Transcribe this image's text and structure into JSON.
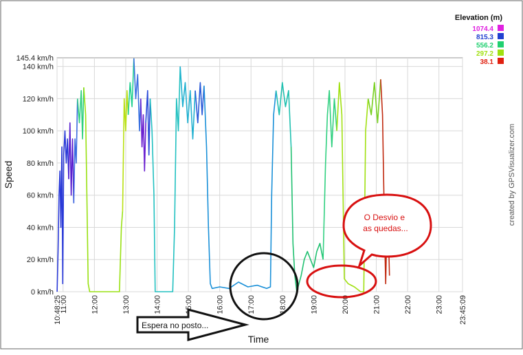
{
  "chart_data": {
    "type": "line",
    "title": "",
    "xlabel": "Time",
    "ylabel": "Speed",
    "ylim": [
      0,
      145.4
    ],
    "y_max_label": "145.4 km/h",
    "y_ticks": [
      "0 km/h",
      "20 km/h",
      "40 km/h",
      "60 km/h",
      "80 km/h",
      "100 km/h",
      "120 km/h",
      "140 km/h"
    ],
    "y_tick_values": [
      0,
      20,
      40,
      60,
      80,
      100,
      120,
      140
    ],
    "x_start": "10:48:25",
    "x_end": "23:45:09",
    "x_ticks": [
      "10:48:25",
      "11:00",
      "12:00",
      "13:00",
      "14:00",
      "15:00",
      "16:00",
      "17:00",
      "18:00",
      "19:00",
      "20:00",
      "21:00",
      "22:00",
      "23:00",
      "23:45:09"
    ],
    "x_tick_values": [
      10.807,
      11,
      12,
      13,
      14,
      15,
      16,
      17,
      18,
      19,
      20,
      21,
      22,
      23,
      23.753
    ],
    "grid": true,
    "color_legend": {
      "title": "Elevation (m)",
      "entries": [
        {
          "label": "1074.4",
          "color": "#e020e0"
        },
        {
          "label": "815.3",
          "color": "#2040d0"
        },
        {
          "label": "556.2",
          "color": "#20d070"
        },
        {
          "label": "297.2",
          "color": "#a0e010"
        },
        {
          "label": "38.1",
          "color": "#e02010"
        }
      ]
    },
    "credit": "created by GPSVisualizer.com",
    "series": [
      {
        "color": "#2a3ad8",
        "points": [
          [
            10.81,
            0
          ],
          [
            10.84,
            25
          ],
          [
            10.87,
            60
          ],
          [
            10.9,
            75
          ],
          [
            10.93,
            40
          ],
          [
            10.96,
            90
          ],
          [
            10.99,
            5
          ],
          [
            11.02,
            85
          ],
          [
            11.06,
            100
          ],
          [
            11.1,
            80
          ],
          [
            11.14,
            95
          ],
          [
            11.18,
            70
          ]
        ]
      },
      {
        "color": "#5a20d0",
        "points": [
          [
            11.18,
            70
          ],
          [
            11.22,
            105
          ],
          [
            11.26,
            60
          ],
          [
            11.3,
            95
          ],
          [
            11.34,
            55
          ]
        ]
      },
      {
        "color": "#3a6ae0",
        "points": [
          [
            11.34,
            55
          ],
          [
            11.38,
            95
          ],
          [
            11.42,
            80
          ],
          [
            11.46,
            120
          ]
        ]
      },
      {
        "color": "#30d080",
        "points": [
          [
            11.46,
            120
          ],
          [
            11.52,
            105
          ],
          [
            11.58,
            125
          ],
          [
            11.62,
            95
          ],
          [
            11.66,
            127
          ]
        ]
      },
      {
        "color": "#98e010",
        "points": [
          [
            11.66,
            127
          ],
          [
            11.72,
            110
          ],
          [
            11.76,
            60
          ],
          [
            11.8,
            5
          ],
          [
            11.85,
            0
          ],
          [
            12.2,
            0
          ],
          [
            12.6,
            0
          ],
          [
            12.8,
            0
          ],
          [
            12.86,
            40
          ],
          [
            12.9,
            50
          ]
        ]
      },
      {
        "color": "#b8e010",
        "points": [
          [
            12.9,
            50
          ],
          [
            12.95,
            120
          ],
          [
            13.0,
            100
          ],
          [
            13.04,
            125
          ],
          [
            13.08,
            110
          ]
        ]
      },
      {
        "color": "#20d090",
        "points": [
          [
            13.08,
            110
          ],
          [
            13.14,
            130
          ],
          [
            13.2,
            115
          ],
          [
            13.26,
            145
          ]
        ]
      },
      {
        "color": "#3a70e0",
        "points": [
          [
            13.26,
            145
          ],
          [
            13.32,
            120
          ],
          [
            13.38,
            135
          ],
          [
            13.44,
            100
          ],
          [
            13.48,
            120
          ]
        ]
      },
      {
        "color": "#6a20d0",
        "points": [
          [
            13.48,
            120
          ],
          [
            13.52,
            90
          ],
          [
            13.56,
            110
          ],
          [
            13.6,
            75
          ],
          [
            13.64,
            105
          ]
        ]
      },
      {
        "color": "#2a4ad8",
        "points": [
          [
            13.64,
            105
          ],
          [
            13.7,
            125
          ],
          [
            13.74,
            85
          ],
          [
            13.78,
            120
          ]
        ]
      },
      {
        "color": "#20c0c0",
        "points": [
          [
            13.78,
            120
          ],
          [
            13.84,
            100
          ],
          [
            13.9,
            60
          ],
          [
            13.94,
            0
          ],
          [
            14.0,
            0
          ],
          [
            14.4,
            0
          ],
          [
            14.5,
            0
          ],
          [
            14.56,
            40
          ],
          [
            14.62,
            120
          ],
          [
            14.68,
            100
          ],
          [
            14.74,
            140
          ]
        ]
      },
      {
        "color": "#20b0d0",
        "points": [
          [
            14.74,
            140
          ],
          [
            14.82,
            115
          ],
          [
            14.9,
            130
          ],
          [
            14.98,
            105
          ],
          [
            15.06,
            125
          ],
          [
            15.14,
            95
          ],
          [
            15.22,
            125
          ]
        ]
      },
      {
        "color": "#2a5ad8",
        "points": [
          [
            15.22,
            125
          ],
          [
            15.3,
            105
          ],
          [
            15.38,
            130
          ],
          [
            15.44,
            110
          ],
          [
            15.5,
            128
          ]
        ]
      },
      {
        "color": "#1a90d8",
        "points": [
          [
            15.5,
            128
          ],
          [
            15.58,
            90
          ],
          [
            15.64,
            40
          ],
          [
            15.7,
            5
          ],
          [
            15.76,
            2
          ],
          [
            16.0,
            3
          ],
          [
            16.3,
            2
          ],
          [
            16.6,
            6
          ],
          [
            16.9,
            3
          ],
          [
            17.2,
            4
          ],
          [
            17.5,
            2
          ],
          [
            17.62,
            3
          ],
          [
            17.66,
            60
          ],
          [
            17.72,
            110
          ],
          [
            17.8,
            125
          ]
        ]
      },
      {
        "color": "#20c0b0",
        "points": [
          [
            17.8,
            125
          ],
          [
            17.9,
            110
          ],
          [
            18.0,
            130
          ],
          [
            18.1,
            115
          ],
          [
            18.2,
            125
          ],
          [
            18.28,
            90
          ]
        ]
      },
      {
        "color": "#20c070",
        "points": [
          [
            18.28,
            90
          ],
          [
            18.34,
            30
          ],
          [
            18.4,
            10
          ],
          [
            18.46,
            0
          ],
          [
            18.6,
            10
          ],
          [
            18.7,
            20
          ],
          [
            18.8,
            25
          ],
          [
            18.9,
            20
          ],
          [
            19.0,
            15
          ],
          [
            19.1,
            25
          ],
          [
            19.2,
            30
          ],
          [
            19.3,
            20
          ]
        ]
      },
      {
        "color": "#30d080",
        "points": [
          [
            19.3,
            20
          ],
          [
            19.38,
            80
          ],
          [
            19.44,
            110
          ],
          [
            19.5,
            125
          ],
          [
            19.58,
            90
          ],
          [
            19.66,
            120
          ],
          [
            19.74,
            100
          ]
        ]
      },
      {
        "color": "#a0e010",
        "points": [
          [
            19.74,
            100
          ],
          [
            19.82,
            130
          ],
          [
            19.9,
            110
          ],
          [
            19.98,
            8
          ],
          [
            20.1,
            5
          ],
          [
            20.3,
            3
          ],
          [
            20.5,
            0
          ],
          [
            20.6,
            0
          ],
          [
            20.66,
            100
          ],
          [
            20.74,
            120
          ]
        ]
      },
      {
        "color": "#78d020",
        "points": [
          [
            20.74,
            120
          ],
          [
            20.84,
            110
          ],
          [
            20.94,
            130
          ],
          [
            21.04,
            105
          ],
          [
            21.14,
            132
          ]
        ]
      },
      {
        "color": "#c02a10",
        "points": [
          [
            21.14,
            132
          ],
          [
            21.2,
            110
          ],
          [
            21.26,
            40
          ],
          [
            21.3,
            5
          ],
          [
            21.36,
            60
          ],
          [
            21.42,
            10
          ]
        ]
      }
    ]
  },
  "annotations": {
    "circle_note": "Espera no posto...",
    "bubble_note": "O Desvio e\nas quedas..."
  }
}
